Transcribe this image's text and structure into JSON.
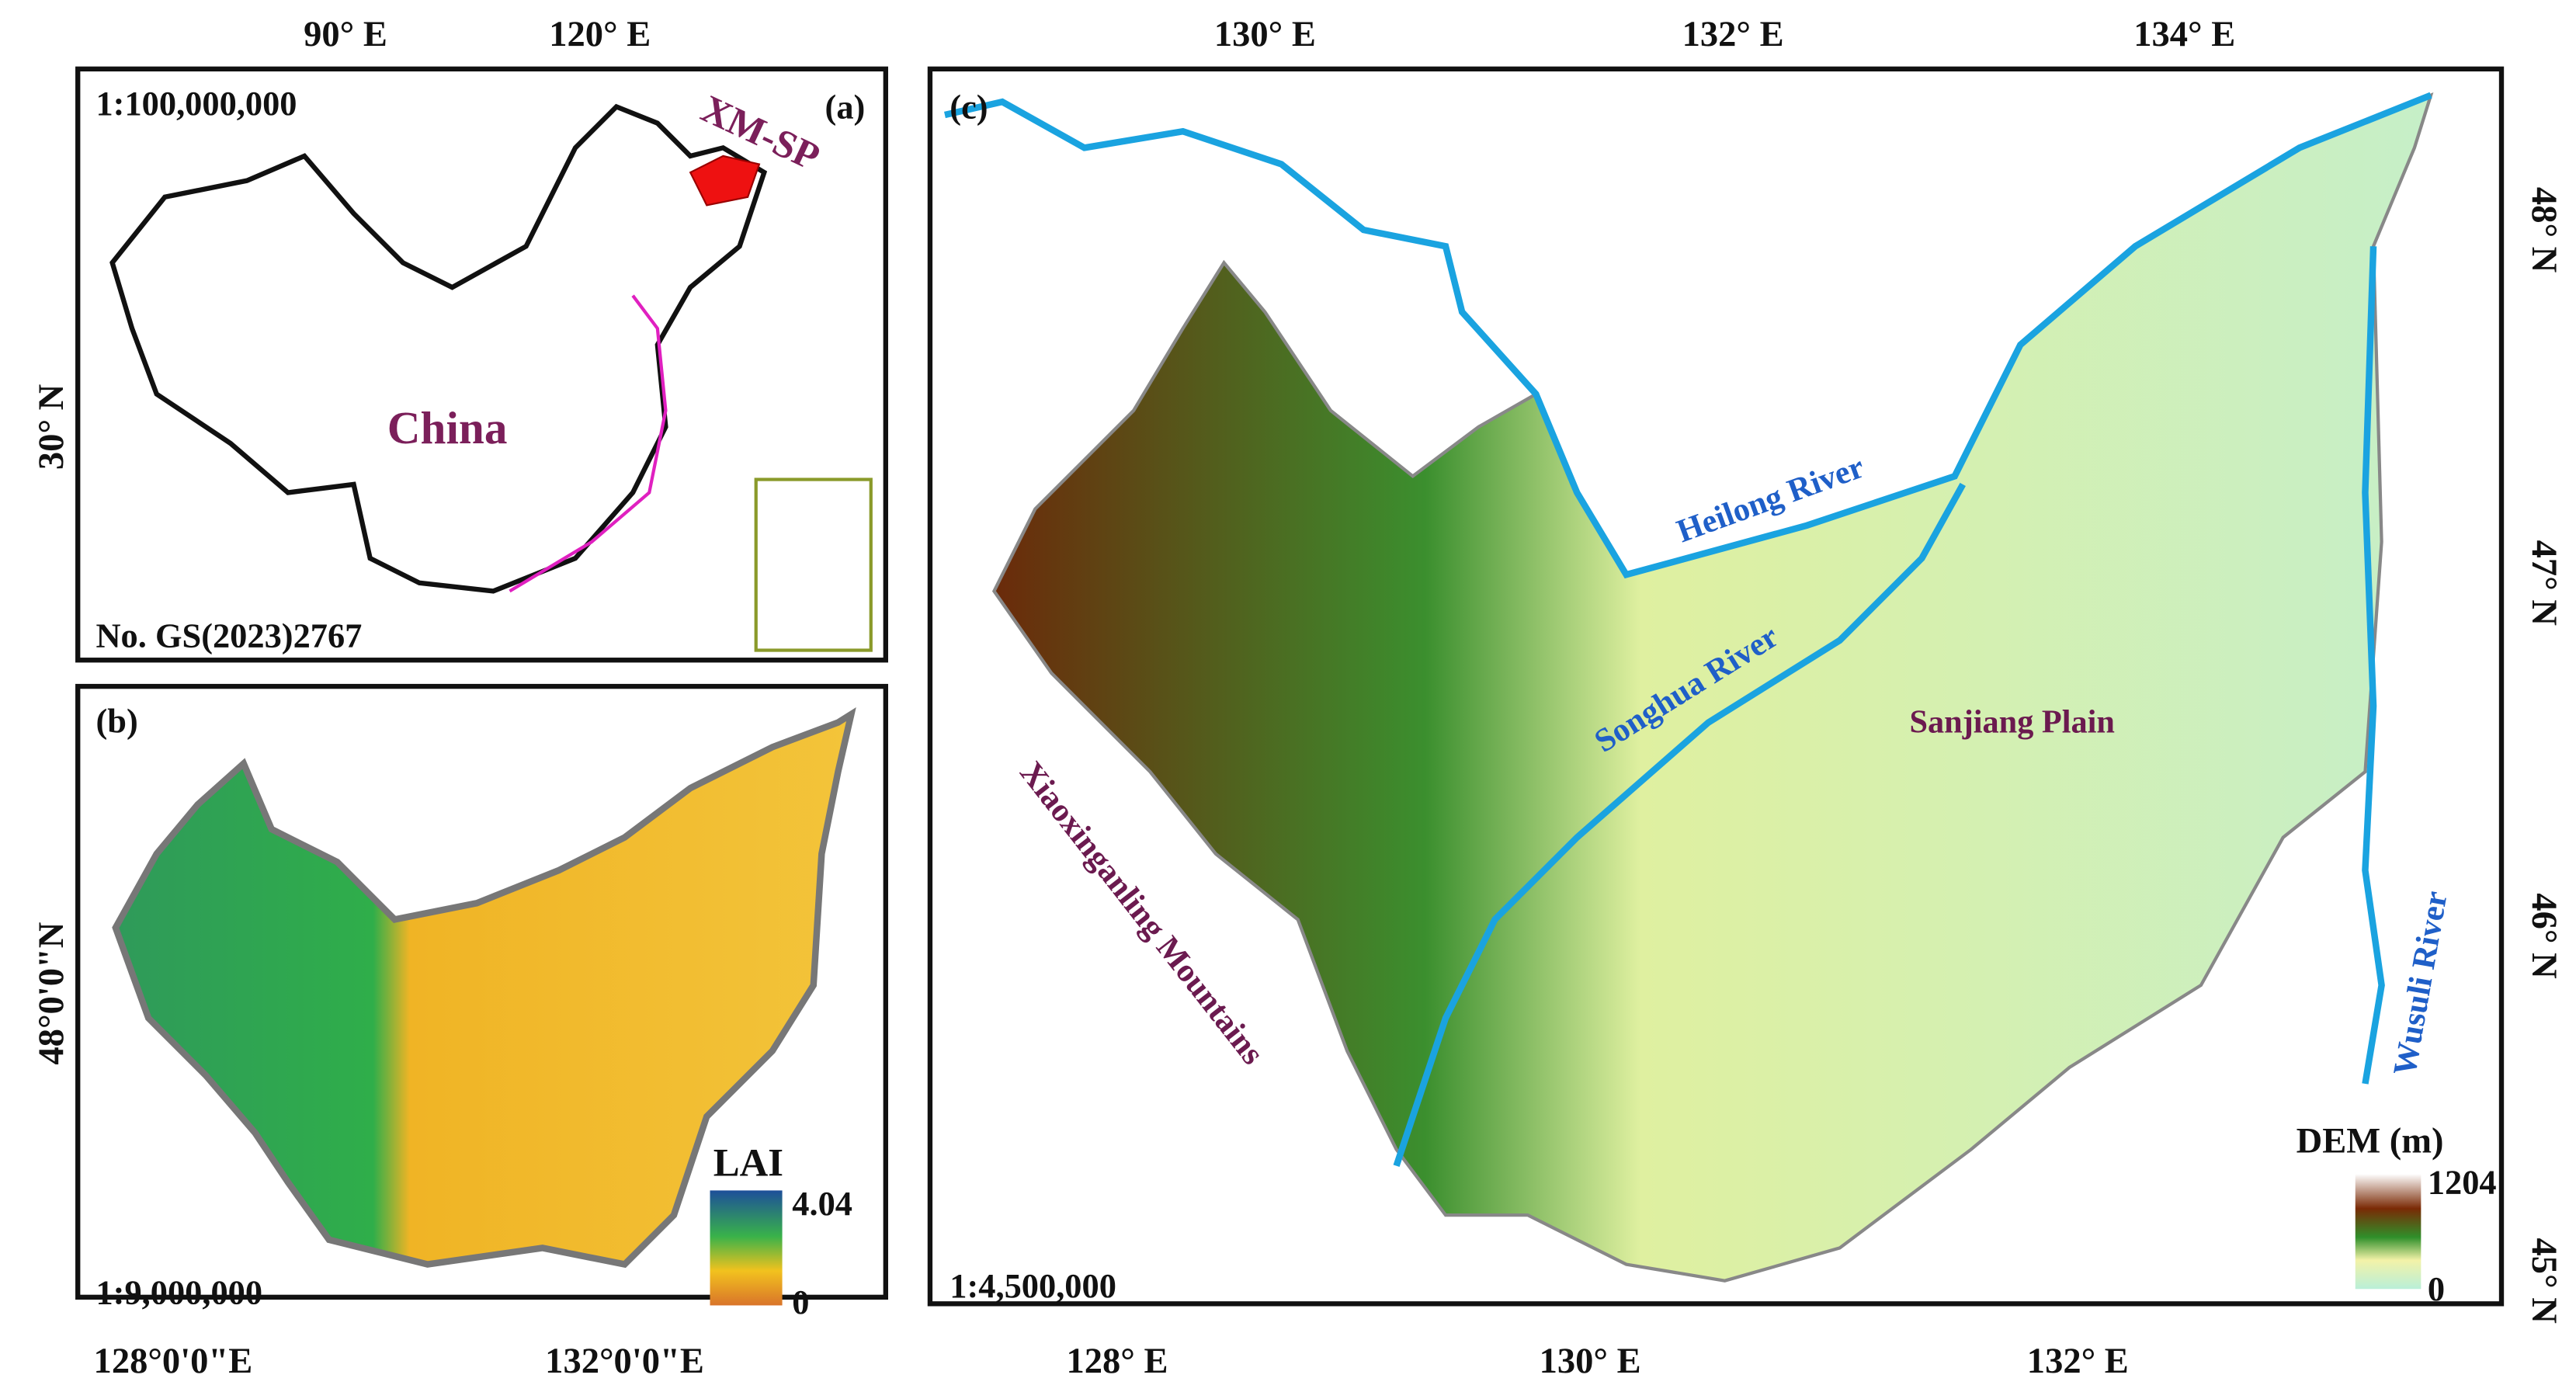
{
  "panel_a": {
    "label": "(a)",
    "scale": "1:100,000,000",
    "top_ticks": [
      "90° E",
      "120° E"
    ],
    "left_ticks": [
      "30° N"
    ],
    "country": "China",
    "region": "XM-SP",
    "approval_no": "No. GS(2023)2767"
  },
  "panel_b": {
    "label": "(b)",
    "scale": "1:9,000,000",
    "left_ticks": [
      "48°0'0\"N"
    ],
    "bottom_ticks": [
      "128°0'0\"E",
      "132°0'0\"E"
    ],
    "legend": {
      "title": "LAI",
      "max": 4.04,
      "min": 0
    }
  },
  "panel_c": {
    "label": "(c)",
    "scale": "1:4,500,000",
    "top_ticks": [
      "130° E",
      "132° E",
      "134° E"
    ],
    "bottom_ticks": [
      "128° E",
      "130° E",
      "132° E"
    ],
    "right_ticks": [
      "48° N",
      "47° N",
      "46° N",
      "45° N"
    ],
    "rivers": [
      "Heilong River",
      "Songhua River",
      "Wusuli River"
    ],
    "plain": "Sanjiang Plain",
    "mountains": "Xiaoxinganling Mountains",
    "legend": {
      "title": "DEM (m)",
      "max": 1204,
      "min": 0
    }
  }
}
